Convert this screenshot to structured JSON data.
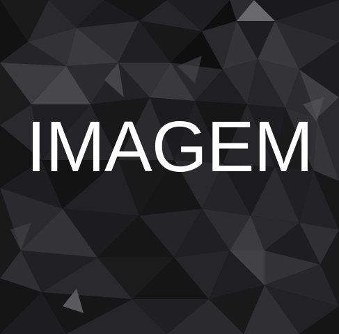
{
  "image": {
    "title": "IMAGEM",
    "background_icon": "low-poly-dark-background",
    "colors": {
      "text": "#ffffff",
      "base": "#0f0f10"
    }
  }
}
